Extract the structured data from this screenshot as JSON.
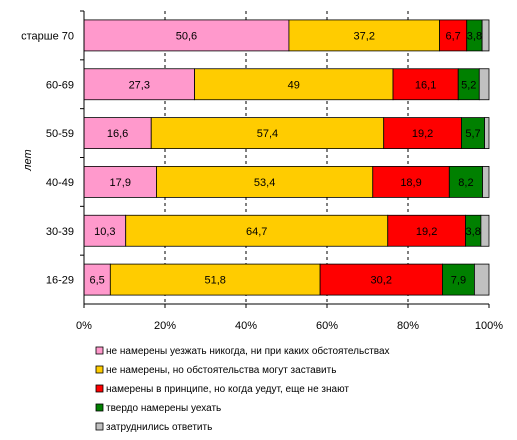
{
  "chart_data": {
    "type": "bar",
    "orientation": "horizontal",
    "stacked": "percent",
    "ylabel": "лет",
    "categories": [
      "старше 70",
      "60-69",
      "50-59",
      "40-49",
      "30-39",
      "16-29"
    ],
    "series": [
      {
        "name": "не намерены уезжать никогда, ни при каких обстоятельствах",
        "color": "#ff99cc",
        "values": [
          50.6,
          27.3,
          16.6,
          17.9,
          10.3,
          6.5
        ]
      },
      {
        "name": "не намерены, но обстоятельства могут заставить",
        "color": "#ffcc00",
        "values": [
          37.2,
          49,
          57.4,
          53.4,
          64.7,
          51.8
        ]
      },
      {
        "name": "намерены в принципе, но когда уедут, еще не знают",
        "color": "#ff0000",
        "values": [
          6.7,
          16.1,
          19.2,
          18.9,
          19.2,
          30.2
        ]
      },
      {
        "name": "твердо намерены уехать",
        "color": "#008000",
        "values": [
          3.8,
          5.2,
          5.7,
          8.2,
          3.8,
          7.9
        ]
      },
      {
        "name": "затруднились ответить",
        "color": "#c0c0c0",
        "values": [
          1.7,
          2.4,
          1.1,
          1.6,
          2.0,
          3.6
        ]
      }
    ],
    "data_labels": [
      [
        "50,6",
        "37,2",
        "6,7",
        "3,8",
        ""
      ],
      [
        "27,3",
        "49",
        "16,1",
        "5,2",
        ""
      ],
      [
        "16,6",
        "57,4",
        "19,2",
        "5,7",
        ""
      ],
      [
        "17,9",
        "53,4",
        "18,9",
        "8,2",
        ""
      ],
      [
        "10,3",
        "64,7",
        "19,2",
        "3,8",
        ""
      ],
      [
        "6,5",
        "51,8",
        "30,2",
        "7,9",
        ""
      ]
    ],
    "xticks": [
      "0%",
      "20%",
      "40%",
      "60%",
      "80%",
      "100%"
    ],
    "xlim": [
      0,
      100
    ],
    "grid": "vertical dashed",
    "legend_position": "bottom"
  }
}
